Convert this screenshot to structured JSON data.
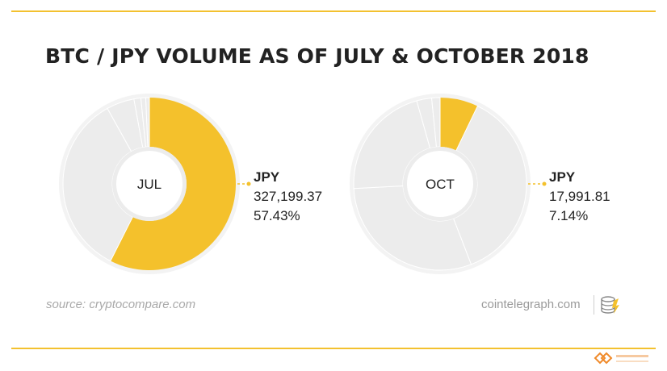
{
  "title": "BTC / JPY VOLUME AS OF JULY & OCTOBER 2018",
  "colors": {
    "accent": "#f4c12c",
    "slice": "#ececec",
    "slice_stroke": "#ffffff",
    "text": "#222222",
    "rule": "#f3c12f"
  },
  "footer": {
    "source": "source: cryptocompare.com",
    "credit": "cointelegraph.com"
  },
  "icons": [
    "coin-stack-logo-icon",
    "watermark-logo-icon"
  ],
  "chart_data": [
    {
      "type": "pie",
      "variant": "donut",
      "center_label": "JUL",
      "highlight": {
        "name": "JPY",
        "value": "327,199.37",
        "percent": "57.43%",
        "share": 57.43
      },
      "other_slices": [
        34.5,
        5.2,
        1.3,
        0.9,
        0.67
      ]
    },
    {
      "type": "pie",
      "variant": "donut",
      "center_label": "OCT",
      "highlight": {
        "name": "JPY",
        "value": "17,991.81",
        "percent": "7.14%",
        "share": 7.14
      },
      "other_slices": [
        37.0,
        30.0,
        21.5,
        2.8,
        1.56
      ]
    }
  ]
}
